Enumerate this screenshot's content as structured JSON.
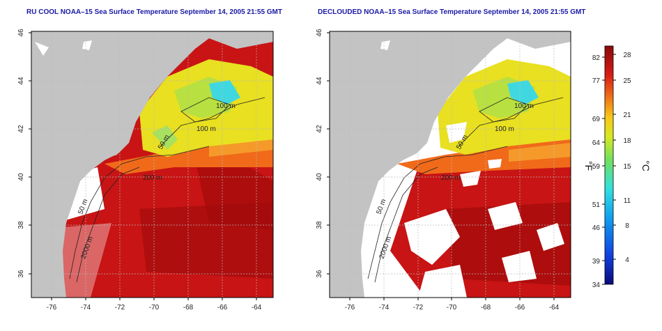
{
  "panels": [
    {
      "title": "RU COOL NOAA–15 Sea Surface Temperature September 14, 2005 21:55 GMT",
      "clouds": false
    },
    {
      "title": "DECLOUDED NOAA–15 Sea Surface Temperature September 14, 2005 21:55 GMT",
      "clouds": true
    }
  ],
  "axes": {
    "x_ticks": [
      "-76",
      "-74",
      "-72",
      "-70",
      "-68",
      "-66",
      "-64"
    ],
    "y_ticks": [
      "36",
      "38",
      "40",
      "42",
      "44",
      "46"
    ],
    "x_range": [
      -77,
      -63
    ],
    "y_range": [
      35,
      46
    ],
    "grid": true
  },
  "contour_labels": [
    "100 m",
    "100 m",
    "50 m",
    "200 m",
    "50 m",
    "2000 m"
  ],
  "colorbar": {
    "fahrenheit_label": "°F",
    "celsius_label": "°C",
    "fahrenheit_ticks": [
      "82",
      "77",
      "69",
      "64",
      "59",
      "51",
      "46",
      "39",
      "34"
    ],
    "celsius_ticks": [
      "28",
      "25",
      "21",
      "18",
      "15",
      "11",
      "8",
      "4"
    ],
    "range_c": [
      1,
      29
    ]
  },
  "colors": {
    "land": "#c3c3c3",
    "cloud": "#ffffff",
    "warm": "#c81414",
    "hot": "#a80c0c",
    "orange": "#f06a1a",
    "yellow": "#e8e020",
    "lime": "#b8e040",
    "cyan": "#40d8e0"
  }
}
